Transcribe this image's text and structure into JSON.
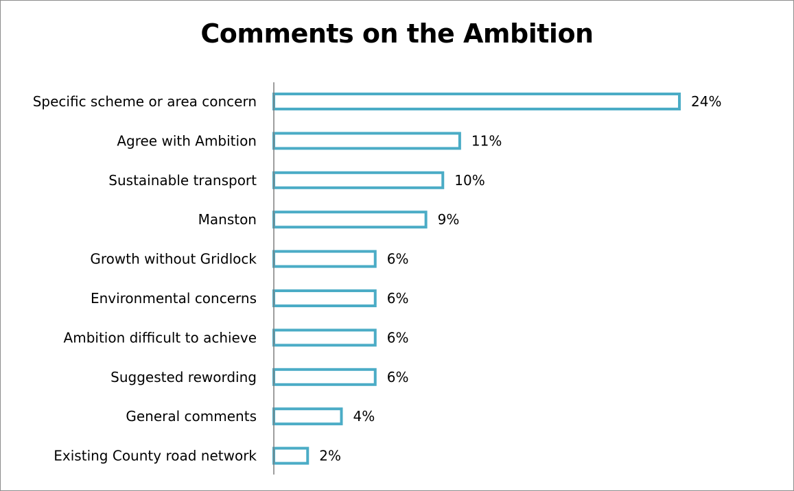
{
  "chart_data": {
    "type": "bar",
    "orientation": "horizontal",
    "title": "Comments on the Ambition",
    "xlabel": "",
    "ylabel": "",
    "categories": [
      "Specific scheme or area concern",
      "Agree with Ambition",
      "Sustainable transport",
      "Manston",
      "Growth without Gridlock",
      "Environmental concerns",
      "Ambition difficult to achieve",
      "Suggested rewording",
      "General comments",
      "Existing County road network"
    ],
    "values": [
      24,
      11,
      10,
      9,
      6,
      6,
      6,
      6,
      4,
      2
    ],
    "value_labels": [
      "24%",
      "11%",
      "10%",
      "9%",
      "6%",
      "6%",
      "6%",
      "6%",
      "4%",
      "2%"
    ],
    "unit": "%",
    "xlim": [
      0,
      24
    ],
    "grid": false,
    "legend": "none",
    "bar_fill": "#ffffff",
    "bar_stroke": "#4bacc6"
  }
}
